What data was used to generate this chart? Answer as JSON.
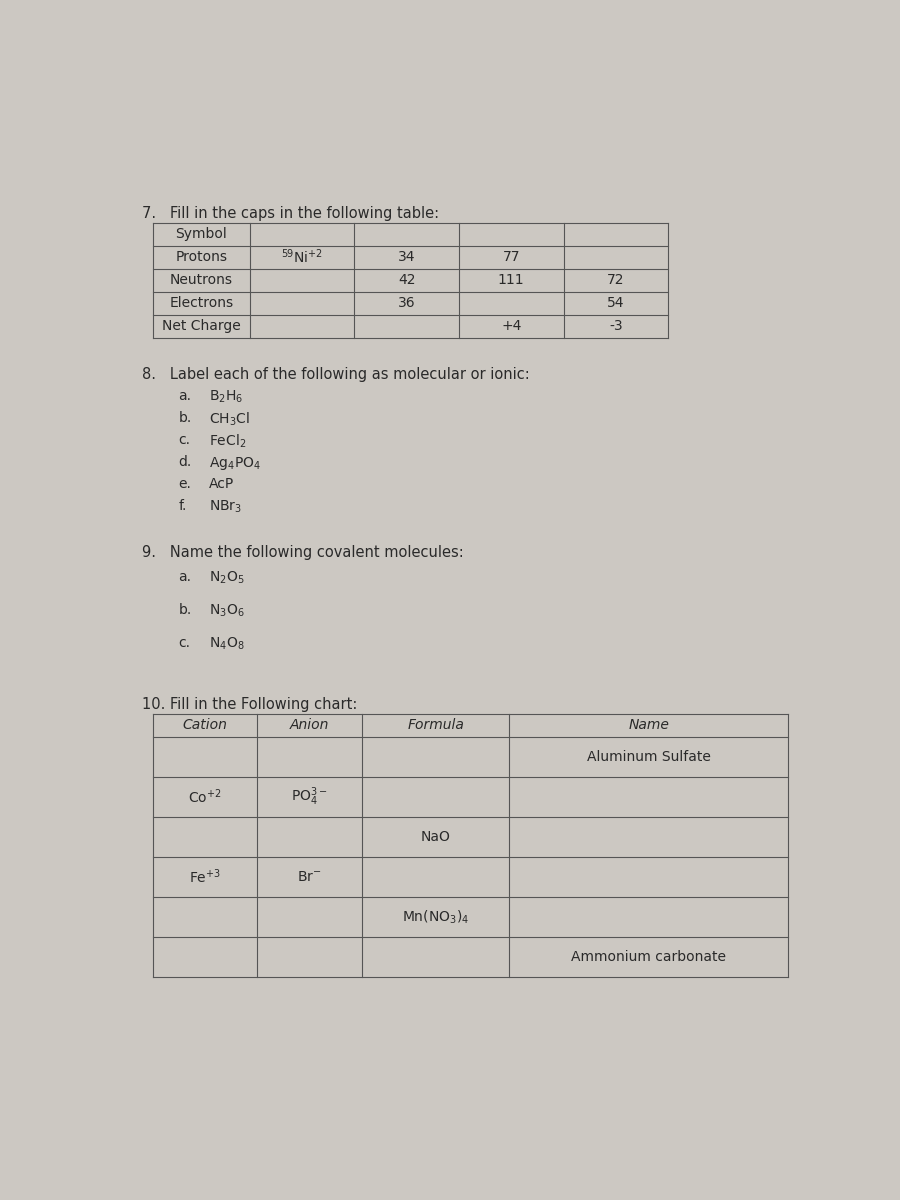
{
  "bg_color": "#ccc8c2",
  "paper_color": "#d4cfca",
  "text_color": "#2a2a2a",
  "line_color": "#555555",
  "title_fontsize": 10.5,
  "body_fontsize": 10,
  "q7_title": "7.   Fill in the caps in the following table:",
  "q7_rows": [
    "Symbol",
    "Protons",
    "Neutrons",
    "Electrons",
    "Net Charge"
  ],
  "q7_symbol": "$^{59}$Ni$^{+2}$",
  "q7_cells": [
    [
      1,
      1,
      "$^{59}$Ni$^{+2}$"
    ],
    [
      1,
      2,
      "34"
    ],
    [
      1,
      3,
      "77"
    ],
    [
      2,
      2,
      "42"
    ],
    [
      2,
      3,
      "111"
    ],
    [
      2,
      4,
      "72"
    ],
    [
      3,
      2,
      "36"
    ],
    [
      3,
      4,
      "54"
    ],
    [
      4,
      3,
      "+4"
    ],
    [
      4,
      4,
      "-3"
    ]
  ],
  "q8_title": "8.   Label each of the following as molecular or ionic:",
  "q8_items": [
    [
      "a.",
      "B$_2$H$_6$"
    ],
    [
      "b.",
      "CH$_3$Cl"
    ],
    [
      "c.",
      "FeCl$_2$"
    ],
    [
      "d.",
      "Ag$_4$PO$_4$"
    ],
    [
      "e.",
      "AcP"
    ],
    [
      "f.",
      "NBr$_3$"
    ]
  ],
  "q9_title": "9.   Name the following covalent molecules:",
  "q9_items": [
    [
      "a.",
      "N$_2$O$_5$"
    ],
    [
      "b.",
      "N$_3$O$_6$"
    ],
    [
      "c.",
      "N$_4$O$_8$"
    ]
  ],
  "q10_title": "10. Fill in the Following chart:",
  "q10_headers": [
    "Cation",
    "Anion",
    "Formula",
    "Name"
  ],
  "q10_rows": [
    [
      "",
      "",
      "",
      "Aluminum Sulfate"
    ],
    [
      "Co$^{+2}$",
      "PO$_4^{3-}$",
      "",
      ""
    ],
    [
      "",
      "",
      "NaO",
      ""
    ],
    [
      "Fe$^{+3}$",
      "Br$^{-}$",
      "",
      ""
    ],
    [
      "",
      "",
      "Mn(NO$_3$)$_4$",
      ""
    ],
    [
      "",
      "",
      "",
      "Ammonium carbonate"
    ]
  ]
}
